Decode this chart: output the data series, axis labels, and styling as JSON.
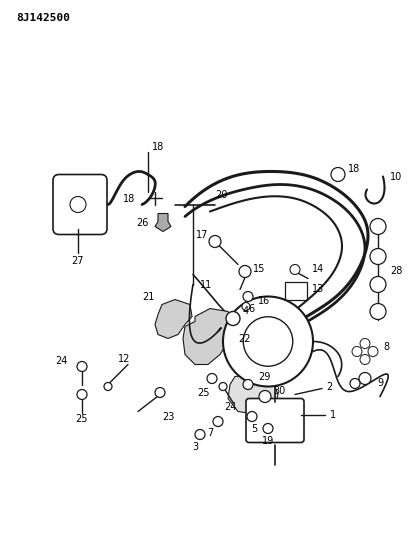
{
  "title_code": "8J142500",
  "bg_color": "#ffffff",
  "line_color": "#1a1a1a",
  "figsize": [
    4.08,
    5.33
  ],
  "dpi": 100,
  "label_fontsize": 7.0
}
